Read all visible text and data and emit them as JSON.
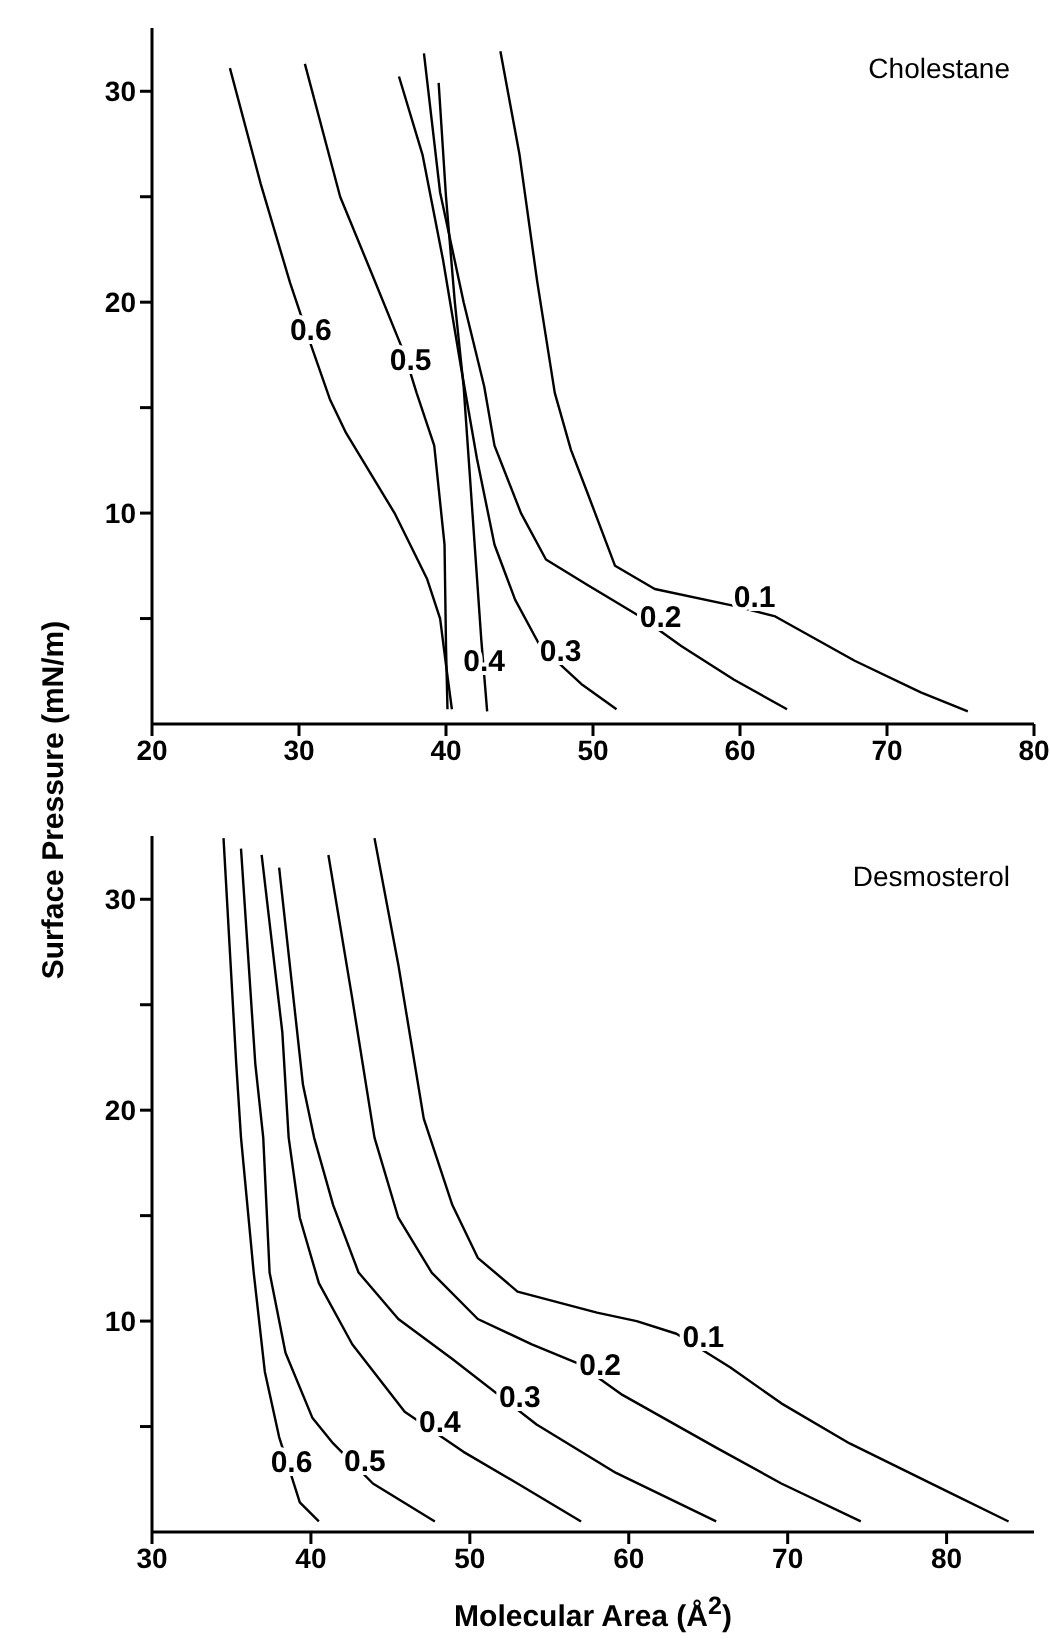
{
  "chart_data": [
    {
      "type": "line",
      "title": "Cholestane",
      "ylabel": "Surface Pressure (mN/m)",
      "xlim": [
        20,
        80
      ],
      "xticks": [
        20,
        30,
        40,
        50,
        60,
        70,
        80
      ],
      "ylim": [
        0,
        33
      ],
      "yticks": [
        {
          "value": 5,
          "label": null
        },
        10,
        {
          "value": 15,
          "label": null
        },
        20,
        {
          "value": 25,
          "label": null
        },
        30
      ],
      "marker": "none",
      "line_style": "solid",
      "series": [
        {
          "name": "0.1",
          "color": "#000000",
          "x": [
            43.7,
            45.0,
            46.2,
            47.4,
            48.5,
            49.6,
            51.5,
            54.2,
            59.6,
            62.4,
            67.8,
            72.3,
            75.5
          ],
          "values": [
            31.9,
            27,
            21,
            15.7,
            13,
            11,
            7.5,
            6.4,
            5.6,
            5.1,
            3.0,
            1.5,
            0.6
          ]
        },
        {
          "name": "0.2",
          "color": "#000000",
          "x": [
            38.5,
            39.6,
            41.2,
            42.6,
            43.3,
            45.1,
            46.8,
            49.6,
            53.2,
            56.0,
            59.6,
            63.2
          ],
          "values": [
            31.8,
            25.2,
            20,
            16,
            13.2,
            10.0,
            7.8,
            6.6,
            5.1,
            3.7,
            2.1,
            0.7
          ]
        },
        {
          "name": "0.3",
          "color": "#000000",
          "x": [
            36.8,
            38.4,
            39.8,
            41.0,
            42.1,
            43.3,
            44.7,
            46.4,
            49.2,
            51.6
          ],
          "values": [
            30.7,
            27,
            22,
            17,
            12.6,
            8.5,
            5.9,
            3.7,
            1.9,
            0.7
          ]
        },
        {
          "name": "0.4",
          "color": "#000000",
          "x": [
            39.5,
            40.0,
            40.6,
            41.2,
            41.6,
            42.0,
            42.4,
            42.8
          ],
          "values": [
            30.4,
            25,
            20,
            16,
            12,
            8,
            4,
            0.6
          ]
        },
        {
          "name": "0.5",
          "color": "#000000",
          "x": [
            30.4,
            32.8,
            35.1,
            37.2,
            38.0,
            39.2,
            39.9,
            40.0,
            40.1
          ],
          "values": [
            31.3,
            25,
            21.1,
            17.5,
            15.7,
            13.2,
            8.5,
            3.7,
            0.7
          ]
        },
        {
          "name": "0.6",
          "color": "#000000",
          "x": [
            25.3,
            27.4,
            29.4,
            30.8,
            32.1,
            33.2,
            36.5,
            38.7,
            39.6,
            40.0,
            40.4
          ],
          "values": [
            31.1,
            25.6,
            20.9,
            18,
            15.4,
            13.8,
            10,
            6.9,
            5.0,
            2.8,
            0.7
          ]
        }
      ]
    },
    {
      "type": "line",
      "title": "Desmosterol",
      "xlabel": "Molecular Area (Å$^{2}$)",
      "xlim": [
        30,
        85.5
      ],
      "xticks": [
        30,
        40,
        50,
        60,
        70,
        80
      ],
      "ylim": [
        0,
        33
      ],
      "yticks": [
        {
          "value": 5,
          "label": null
        },
        10,
        {
          "value": 15,
          "label": null
        },
        20,
        {
          "value": 25,
          "label": null
        },
        30
      ],
      "marker": "none",
      "line_style": "solid",
      "series": [
        {
          "name": "0.1",
          "color": "#000000",
          "x": [
            44.0,
            45.5,
            47.1,
            48.9,
            50.5,
            53.0,
            58.0,
            60.5,
            63.0,
            66.4,
            69.6,
            73.9,
            80.1,
            83.9
          ],
          "values": [
            32.9,
            26.9,
            19.6,
            15.5,
            13.0,
            11.4,
            10.4,
            10.0,
            9.4,
            7.8,
            6.1,
            4.2,
            1.9,
            0.5
          ]
        },
        {
          "name": "0.2",
          "color": "#000000",
          "x": [
            41.1,
            42.6,
            44.0,
            45.5,
            47.6,
            50.5,
            53.9,
            56.8,
            59.6,
            65.5,
            69.6,
            74.6
          ],
          "values": [
            32.1,
            25.3,
            18.7,
            14.9,
            12.3,
            10.1,
            8.9,
            8.0,
            6.5,
            4.0,
            2.3,
            0.5
          ]
        },
        {
          "name": "0.3",
          "color": "#000000",
          "x": [
            38.0,
            39.5,
            40.2,
            41.4,
            43.0,
            45.5,
            48.9,
            54.2,
            59.2,
            65.5
          ],
          "values": [
            31.5,
            21.2,
            18.7,
            15.5,
            12.3,
            10.1,
            8.2,
            5.1,
            2.8,
            0.5
          ]
        },
        {
          "name": "0.4",
          "color": "#000000",
          "x": [
            36.9,
            38.2,
            38.6,
            39.3,
            40.5,
            42.6,
            45.9,
            49.6,
            53.0,
            57.0
          ],
          "values": [
            32.1,
            23.7,
            18.7,
            14.9,
            11.8,
            8.9,
            5.7,
            3.8,
            2.3,
            0.5
          ]
        },
        {
          "name": "0.5",
          "color": "#000000",
          "x": [
            35.6,
            36.5,
            37.0,
            37.4,
            38.4,
            40.1,
            41.4,
            43.9,
            47.8
          ],
          "values": [
            32.4,
            22.2,
            18.7,
            12.3,
            8.5,
            5.4,
            4.2,
            2.3,
            0.5
          ]
        },
        {
          "name": "0.6",
          "color": "#000000",
          "x": [
            34.5,
            35.3,
            35.6,
            36.4,
            37.1,
            38.0,
            39.3,
            40.5
          ],
          "values": [
            32.9,
            22.2,
            18.7,
            12.3,
            7.6,
            4.5,
            1.4,
            0.5
          ]
        }
      ]
    }
  ]
}
